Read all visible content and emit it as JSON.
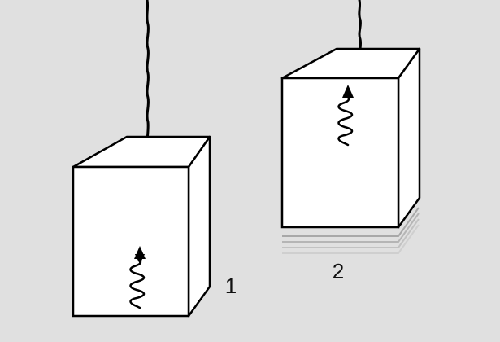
{
  "scene": {
    "background": "#e0e0e0",
    "stroke_color": "#000000",
    "motion_trail_color": "#a8a8a8"
  },
  "boxes": [
    {
      "label": "1",
      "state": "hanging at rest",
      "spring_icon": "spring-with-up-arrow-icon"
    },
    {
      "label": "2",
      "state": "lifted, with motion trail below",
      "spring_icon": "spring-with-up-arrow-icon"
    }
  ]
}
